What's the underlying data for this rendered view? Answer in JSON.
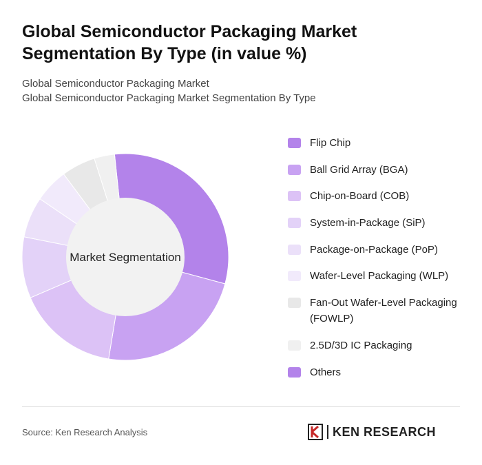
{
  "header": {
    "title": "Global Semiconductor Packaging Market Segmentation By Type (in value %)",
    "subtitle_1": "Global Semiconductor Packaging Market",
    "subtitle_2": "Global Semiconductor Packaging Market Segmentation By Type"
  },
  "chart_data": {
    "type": "pie",
    "center_label": "Market Segmentation",
    "categories": [
      "Flip Chip",
      "Ball Grid Array (BGA)",
      "Chip-on-Board (COB)",
      "System-in-Package (SiP)",
      "Package-on-Package (PoP)",
      "Wafer-Level Packaging (WLP)",
      "Fan-Out Wafer-Level Packaging (FOWLP)",
      "2.5D/3D IC Packaging",
      "Others"
    ],
    "values": [
      29,
      22,
      15,
      9,
      6,
      5,
      5,
      3,
      0
    ],
    "colors": [
      "#b383ea",
      "#c8a2f2",
      "#dcc2f6",
      "#e3d2f8",
      "#ebe0f9",
      "#f1eafb",
      "#e8e8e8",
      "#f0f0f0",
      "#b383ea"
    ],
    "legend_position": "right"
  },
  "footer": {
    "source": "Source: Ken Research Analysis",
    "logo_text": "KEN RESEARCH"
  }
}
